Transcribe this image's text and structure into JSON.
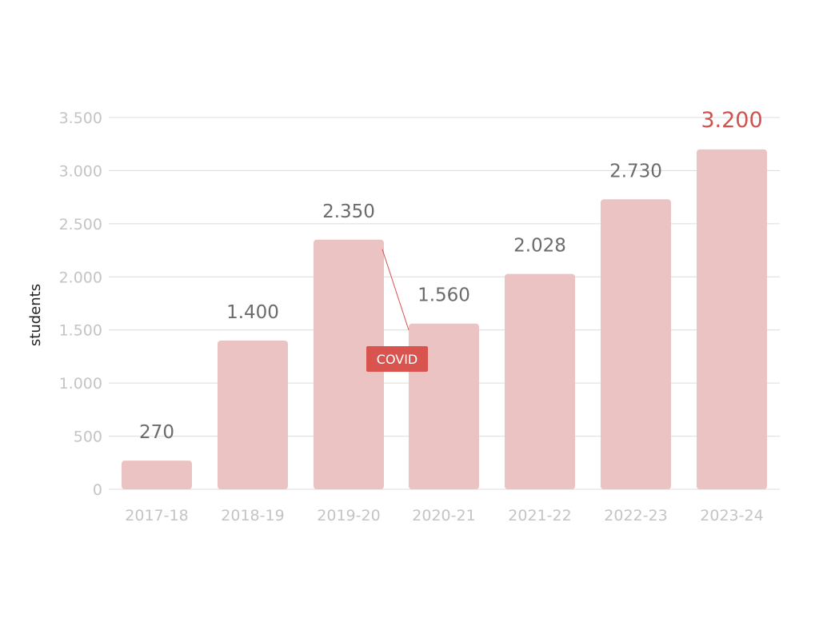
{
  "chart_data": {
    "type": "bar",
    "categories": [
      "2017-18",
      "2018-19",
      "2019-20",
      "2020-21",
      "2021-22",
      "2022-23",
      "2023-24"
    ],
    "values": [
      270,
      1400,
      2350,
      1560,
      2028,
      2730,
      3200
    ],
    "value_labels": [
      "270",
      "1.400",
      "2.350",
      "1.560",
      "2.028",
      "2.730",
      "3.200"
    ],
    "highlight_index": 6,
    "ylabel": "students",
    "xlabel": "",
    "ylim": [
      0,
      3500
    ],
    "yticks": [
      0,
      500,
      1000,
      1500,
      2000,
      2500,
      3000,
      3500
    ],
    "ytick_labels": [
      "0",
      "500",
      "1.000",
      "1.500",
      "2.000",
      "2.500",
      "3.000",
      "3.500"
    ],
    "grid": true,
    "annotations": [
      {
        "text": "COVID",
        "from_index": 2,
        "to_index": 3
      }
    ]
  },
  "colors": {
    "bar": "#ebc3c3",
    "grid": "#dcdcdc",
    "highlight_text": "#d0524f",
    "annotation_bg": "#d9534f"
  }
}
